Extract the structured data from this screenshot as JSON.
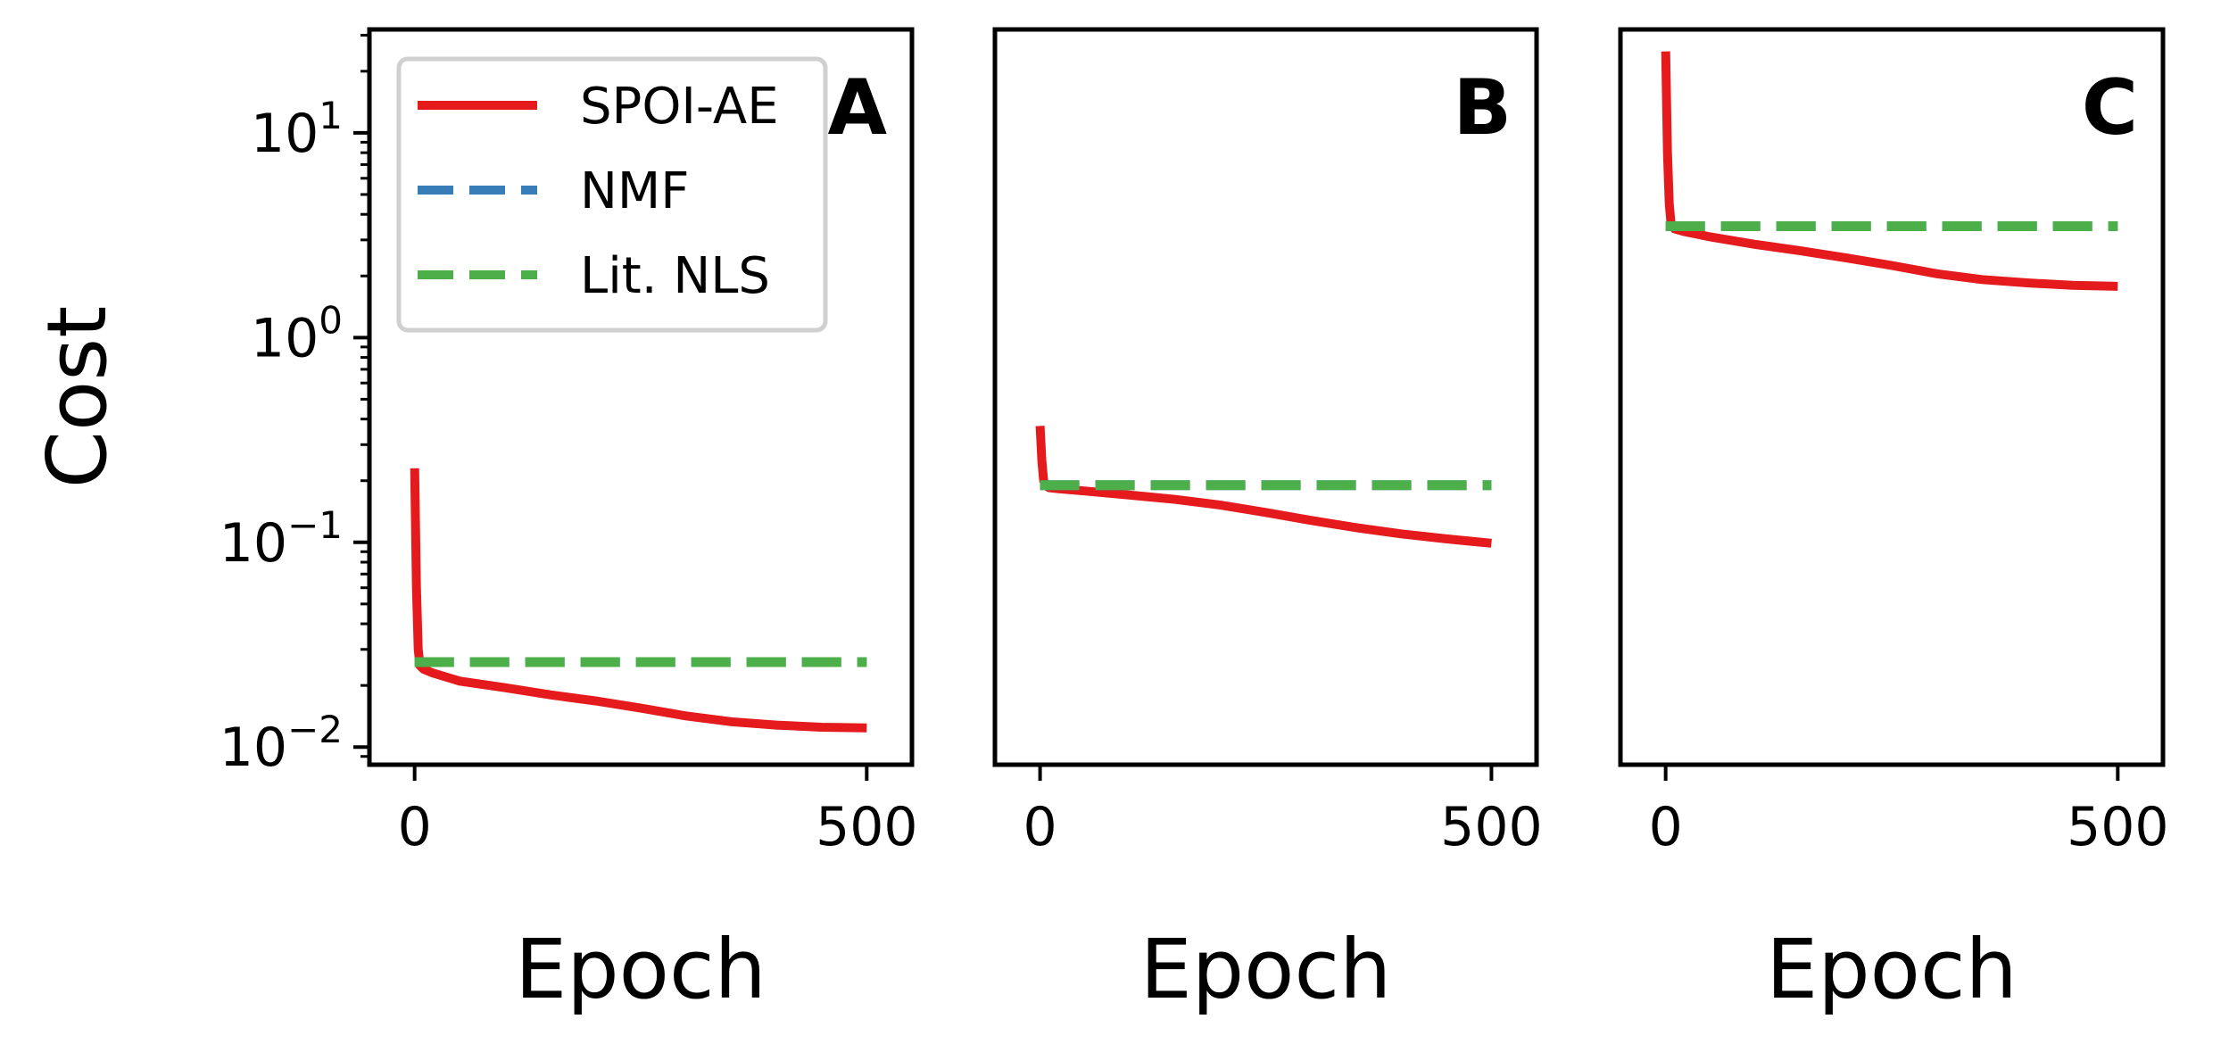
{
  "chart_data": [
    {
      "type": "line",
      "panel_label": "A",
      "xlabel": "Epoch",
      "ylabel": "Cost",
      "yscale": "log",
      "xlim": [
        -50,
        550
      ],
      "ylim": [
        0.0082,
        32
      ],
      "xticks": [
        0,
        500
      ],
      "yticks": [
        0.01,
        0.1,
        1,
        10
      ],
      "ytick_labels": [
        {
          "base": "10",
          "exp": "−2"
        },
        {
          "base": "10",
          "exp": "−1"
        },
        {
          "base": "10",
          "exp": "0"
        },
        {
          "base": "10",
          "exp": "1"
        }
      ],
      "legend": {
        "position": "top-left",
        "entries": [
          {
            "label": "SPOI-AE",
            "style": "solid",
            "color": "#e41a1c"
          },
          {
            "label": "NMF",
            "style": "dashed",
            "color": "#377eb8"
          },
          {
            "label": "Lit. NLS",
            "style": "dashed",
            "color": "#4daf4a"
          }
        ]
      },
      "series": [
        {
          "name": "SPOI-AE",
          "color": "#e41a1c",
          "style": "solid",
          "x": [
            0,
            2,
            4,
            6,
            10,
            20,
            50,
            100,
            150,
            200,
            250,
            300,
            350,
            400,
            450,
            500
          ],
          "y": [
            0.23,
            0.06,
            0.03,
            0.025,
            0.024,
            0.023,
            0.021,
            0.0195,
            0.018,
            0.0168,
            0.0155,
            0.0142,
            0.0133,
            0.0128,
            0.0125,
            0.0124
          ]
        },
        {
          "name": "NMF",
          "color": "#377eb8",
          "style": "dashed",
          "x": [
            0,
            500
          ],
          "y": [
            0.026,
            0.026
          ]
        },
        {
          "name": "Lit. NLS",
          "color": "#4daf4a",
          "style": "dashed",
          "x": [
            0,
            500
          ],
          "y": [
            0.026,
            0.026
          ]
        }
      ]
    },
    {
      "type": "line",
      "panel_label": "B",
      "xlabel": "Epoch",
      "yscale": "log",
      "xlim": [
        -50,
        550
      ],
      "ylim": [
        0.0082,
        32
      ],
      "xticks": [
        0,
        500
      ],
      "series": [
        {
          "name": "SPOI-AE",
          "color": "#e41a1c",
          "style": "solid",
          "x": [
            0,
            2,
            4,
            6,
            10,
            20,
            50,
            100,
            150,
            200,
            250,
            300,
            350,
            400,
            450,
            500
          ],
          "y": [
            0.37,
            0.25,
            0.2,
            0.19,
            0.185,
            0.183,
            0.178,
            0.17,
            0.162,
            0.152,
            0.14,
            0.128,
            0.118,
            0.11,
            0.104,
            0.099
          ]
        },
        {
          "name": "NMF",
          "color": "#377eb8",
          "style": "dashed",
          "x": [
            0,
            500
          ],
          "y": [
            0.19,
            0.19
          ]
        },
        {
          "name": "Lit. NLS",
          "color": "#4daf4a",
          "style": "dashed",
          "x": [
            0,
            500
          ],
          "y": [
            0.19,
            0.19
          ]
        }
      ]
    },
    {
      "type": "line",
      "panel_label": "C",
      "xlabel": "Epoch",
      "yscale": "log",
      "xlim": [
        -50,
        550
      ],
      "ylim": [
        0.0082,
        32
      ],
      "xticks": [
        0,
        500
      ],
      "series": [
        {
          "name": "SPOI-AE",
          "color": "#e41a1c",
          "style": "solid",
          "x": [
            0,
            2,
            4,
            6,
            10,
            20,
            50,
            100,
            150,
            200,
            250,
            300,
            350,
            400,
            450,
            500
          ],
          "y": [
            25,
            8,
            4.5,
            3.6,
            3.4,
            3.3,
            3.1,
            2.85,
            2.65,
            2.45,
            2.25,
            2.05,
            1.92,
            1.85,
            1.8,
            1.78
          ]
        },
        {
          "name": "NMF",
          "color": "#377eb8",
          "style": "dashed",
          "x": [
            0,
            500
          ],
          "y": [
            3.5,
            3.5
          ]
        },
        {
          "name": "Lit. NLS",
          "color": "#4daf4a",
          "style": "dashed",
          "x": [
            0,
            500
          ],
          "y": [
            3.5,
            3.5
          ]
        }
      ]
    }
  ]
}
